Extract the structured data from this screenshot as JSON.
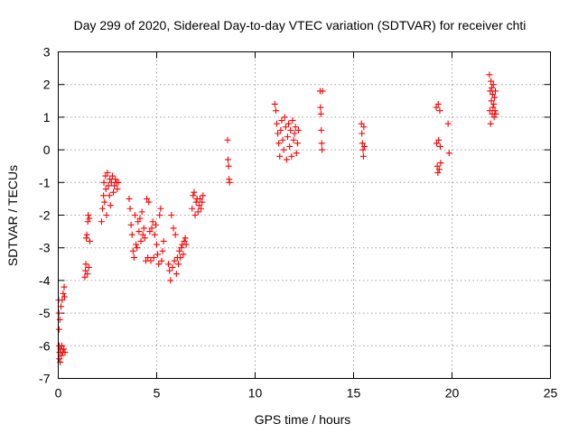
{
  "chart_data": {
    "type": "scatter",
    "title": "Day 299 of 2020, Sidereal Day-to-day VTEC variation (SDTVAR) for receiver chti",
    "xlabel": "GPS time / hours",
    "ylabel": "SDTVAR / TECUs",
    "xlim": [
      0,
      25
    ],
    "ylim": [
      -7,
      3
    ],
    "xticks": [
      0,
      5,
      10,
      15,
      20,
      25
    ],
    "yticks": [
      -7,
      -6,
      -5,
      -4,
      -3,
      -2,
      -1,
      0,
      1,
      2,
      3
    ],
    "xtick_labels": [
      "0",
      "5",
      "10",
      "15",
      "20",
      "25"
    ],
    "ytick_labels": [
      "-7",
      "-6",
      "-5",
      "-4",
      "-3",
      "-2",
      "-1",
      "0",
      "1",
      "2",
      "3"
    ],
    "grid": true,
    "marker": "+",
    "color": "#ff0000",
    "series": [
      {
        "name": "SDTVAR",
        "points": [
          [
            0.02,
            -4.6
          ],
          [
            0.03,
            -5.0
          ],
          [
            0.04,
            -5.5
          ],
          [
            0.05,
            -6.0
          ],
          [
            0.06,
            -6.4
          ],
          [
            0.07,
            -6.2
          ],
          [
            0.08,
            -5.2
          ],
          [
            0.1,
            -6.5
          ],
          [
            0.12,
            -6.1
          ],
          [
            0.14,
            -4.8
          ],
          [
            0.16,
            -6.3
          ],
          [
            0.18,
            -6.0
          ],
          [
            0.2,
            -4.6
          ],
          [
            0.22,
            -6.2
          ],
          [
            0.25,
            -4.4
          ],
          [
            0.28,
            -6.1
          ],
          [
            0.3,
            -4.2
          ],
          [
            0.32,
            -4.5
          ],
          [
            0.34,
            -6.2
          ],
          [
            1.35,
            -3.9
          ],
          [
            1.38,
            -3.7
          ],
          [
            1.4,
            -3.5
          ],
          [
            1.42,
            -2.7
          ],
          [
            1.45,
            -2.6
          ],
          [
            1.48,
            -3.8
          ],
          [
            1.5,
            -2.2
          ],
          [
            1.52,
            -2.0
          ],
          [
            1.55,
            -3.6
          ],
          [
            1.58,
            -2.1
          ],
          [
            1.6,
            -2.8
          ],
          [
            2.2,
            -2.2
          ],
          [
            2.25,
            -1.8
          ],
          [
            2.3,
            -1.4
          ],
          [
            2.32,
            -1.0
          ],
          [
            2.35,
            -1.6
          ],
          [
            2.4,
            -0.8
          ],
          [
            2.42,
            -1.2
          ],
          [
            2.45,
            -2.0
          ],
          [
            2.5,
            -0.7
          ],
          [
            2.55,
            -1.1
          ],
          [
            2.6,
            -1.4
          ],
          [
            2.62,
            -0.9
          ],
          [
            2.65,
            -1.7
          ],
          [
            2.7,
            -1.0
          ],
          [
            2.75,
            -0.8
          ],
          [
            2.8,
            -1.3
          ],
          [
            2.85,
            -1.1
          ],
          [
            2.9,
            -0.9
          ],
          [
            2.95,
            -1.0
          ],
          [
            3.0,
            -1.2
          ],
          [
            3.05,
            -1.0
          ],
          [
            3.6,
            -1.5
          ],
          [
            3.65,
            -1.8
          ],
          [
            3.7,
            -2.3
          ],
          [
            3.75,
            -2.6
          ],
          [
            3.8,
            -3.1
          ],
          [
            3.85,
            -3.3
          ],
          [
            3.9,
            -2.0
          ],
          [
            3.95,
            -2.9
          ],
          [
            4.0,
            -3.0
          ],
          [
            4.05,
            -2.2
          ],
          [
            4.1,
            -2.5
          ],
          [
            4.15,
            -2.1
          ],
          [
            4.2,
            -2.8
          ],
          [
            4.25,
            -1.9
          ],
          [
            4.3,
            -2.6
          ],
          [
            4.35,
            -2.4
          ],
          [
            4.4,
            -2.7
          ],
          [
            4.45,
            -3.4
          ],
          [
            4.5,
            -1.5
          ],
          [
            4.55,
            -3.3
          ],
          [
            4.6,
            -1.6
          ],
          [
            4.65,
            -2.5
          ],
          [
            4.7,
            -3.4
          ],
          [
            4.75,
            -2.4
          ],
          [
            4.8,
            -2.2
          ],
          [
            4.85,
            -3.3
          ],
          [
            4.9,
            -2.6
          ],
          [
            4.95,
            -2.3
          ],
          [
            5.0,
            -2.9
          ],
          [
            5.05,
            -3.2
          ],
          [
            5.1,
            -3.5
          ],
          [
            5.15,
            -2.0
          ],
          [
            5.2,
            -1.8
          ],
          [
            5.25,
            -3.4
          ],
          [
            5.3,
            -3.1
          ],
          [
            5.35,
            -2.8
          ],
          [
            5.6,
            -3.5
          ],
          [
            5.65,
            -3.7
          ],
          [
            5.7,
            -4.0
          ],
          [
            5.75,
            -2.0
          ],
          [
            5.8,
            -3.6
          ],
          [
            5.85,
            -2.4
          ],
          [
            5.9,
            -3.4
          ],
          [
            5.95,
            -2.6
          ],
          [
            6.0,
            -3.8
          ],
          [
            6.05,
            -3.3
          ],
          [
            6.1,
            -3.5
          ],
          [
            6.15,
            -3.1
          ],
          [
            6.2,
            -3.3
          ],
          [
            6.25,
            -3.0
          ],
          [
            6.3,
            -2.9
          ],
          [
            6.35,
            -3.2
          ],
          [
            6.4,
            -2.8
          ],
          [
            6.45,
            -2.7
          ],
          [
            6.5,
            -2.9
          ],
          [
            6.8,
            -1.8
          ],
          [
            6.85,
            -1.4
          ],
          [
            6.9,
            -1.3
          ],
          [
            6.95,
            -2.0
          ],
          [
            7.0,
            -1.6
          ],
          [
            7.05,
            -1.5
          ],
          [
            7.1,
            -1.9
          ],
          [
            7.15,
            -1.7
          ],
          [
            7.2,
            -1.5
          ],
          [
            7.25,
            -1.8
          ],
          [
            7.3,
            -1.6
          ],
          [
            7.35,
            -1.4
          ],
          [
            8.6,
            0.3
          ],
          [
            8.62,
            -0.3
          ],
          [
            8.65,
            -0.5
          ],
          [
            8.68,
            -0.9
          ],
          [
            8.7,
            -1.0
          ],
          [
            11.0,
            1.4
          ],
          [
            11.05,
            1.2
          ],
          [
            11.1,
            0.8
          ],
          [
            11.15,
            0.5
          ],
          [
            11.2,
            0.2
          ],
          [
            11.25,
            -0.2
          ],
          [
            11.3,
            0.6
          ],
          [
            11.35,
            0.9
          ],
          [
            11.4,
            0.3
          ],
          [
            11.45,
            0.0
          ],
          [
            11.5,
            1.0
          ],
          [
            11.55,
            0.7
          ],
          [
            11.6,
            -0.3
          ],
          [
            11.65,
            0.4
          ],
          [
            11.7,
            0.8
          ],
          [
            11.75,
            0.1
          ],
          [
            11.8,
            0.6
          ],
          [
            11.85,
            -0.2
          ],
          [
            11.9,
            0.9
          ],
          [
            11.95,
            0.3
          ],
          [
            12.0,
            0.5
          ],
          [
            12.05,
            0.7
          ],
          [
            12.1,
            -0.1
          ],
          [
            12.15,
            0.2
          ],
          [
            12.2,
            0.6
          ],
          [
            13.3,
            1.8
          ],
          [
            13.32,
            1.3
          ],
          [
            13.34,
            1.1
          ],
          [
            13.36,
            0.6
          ],
          [
            13.38,
            0.2
          ],
          [
            13.4,
            0.0
          ],
          [
            13.42,
            1.8
          ],
          [
            15.4,
            0.8
          ],
          [
            15.42,
            0.5
          ],
          [
            15.45,
            0.2
          ],
          [
            15.48,
            0.0
          ],
          [
            15.5,
            -0.2
          ],
          [
            15.52,
            0.7
          ],
          [
            15.55,
            0.1
          ],
          [
            19.2,
            1.3
          ],
          [
            19.22,
            0.2
          ],
          [
            19.25,
            -0.5
          ],
          [
            19.28,
            -0.7
          ],
          [
            19.3,
            1.4
          ],
          [
            19.32,
            0.3
          ],
          [
            19.35,
            -0.6
          ],
          [
            19.38,
            1.2
          ],
          [
            19.4,
            0.1
          ],
          [
            19.42,
            -0.4
          ],
          [
            19.8,
            0.8
          ],
          [
            19.85,
            -0.1
          ],
          [
            21.9,
            2.3
          ],
          [
            21.92,
            1.2
          ],
          [
            21.94,
            1.8
          ],
          [
            21.96,
            0.8
          ],
          [
            21.98,
            2.1
          ],
          [
            22.0,
            1.5
          ],
          [
            22.02,
            1.9
          ],
          [
            22.04,
            1.1
          ],
          [
            22.06,
            1.7
          ],
          [
            22.08,
            1.3
          ],
          [
            22.1,
            2.0
          ],
          [
            22.12,
            1.4
          ],
          [
            22.14,
            1.0
          ],
          [
            22.16,
            1.6
          ],
          [
            22.18,
            1.2
          ],
          [
            22.2,
            1.8
          ],
          [
            22.22,
            1.1
          ]
        ]
      }
    ]
  }
}
